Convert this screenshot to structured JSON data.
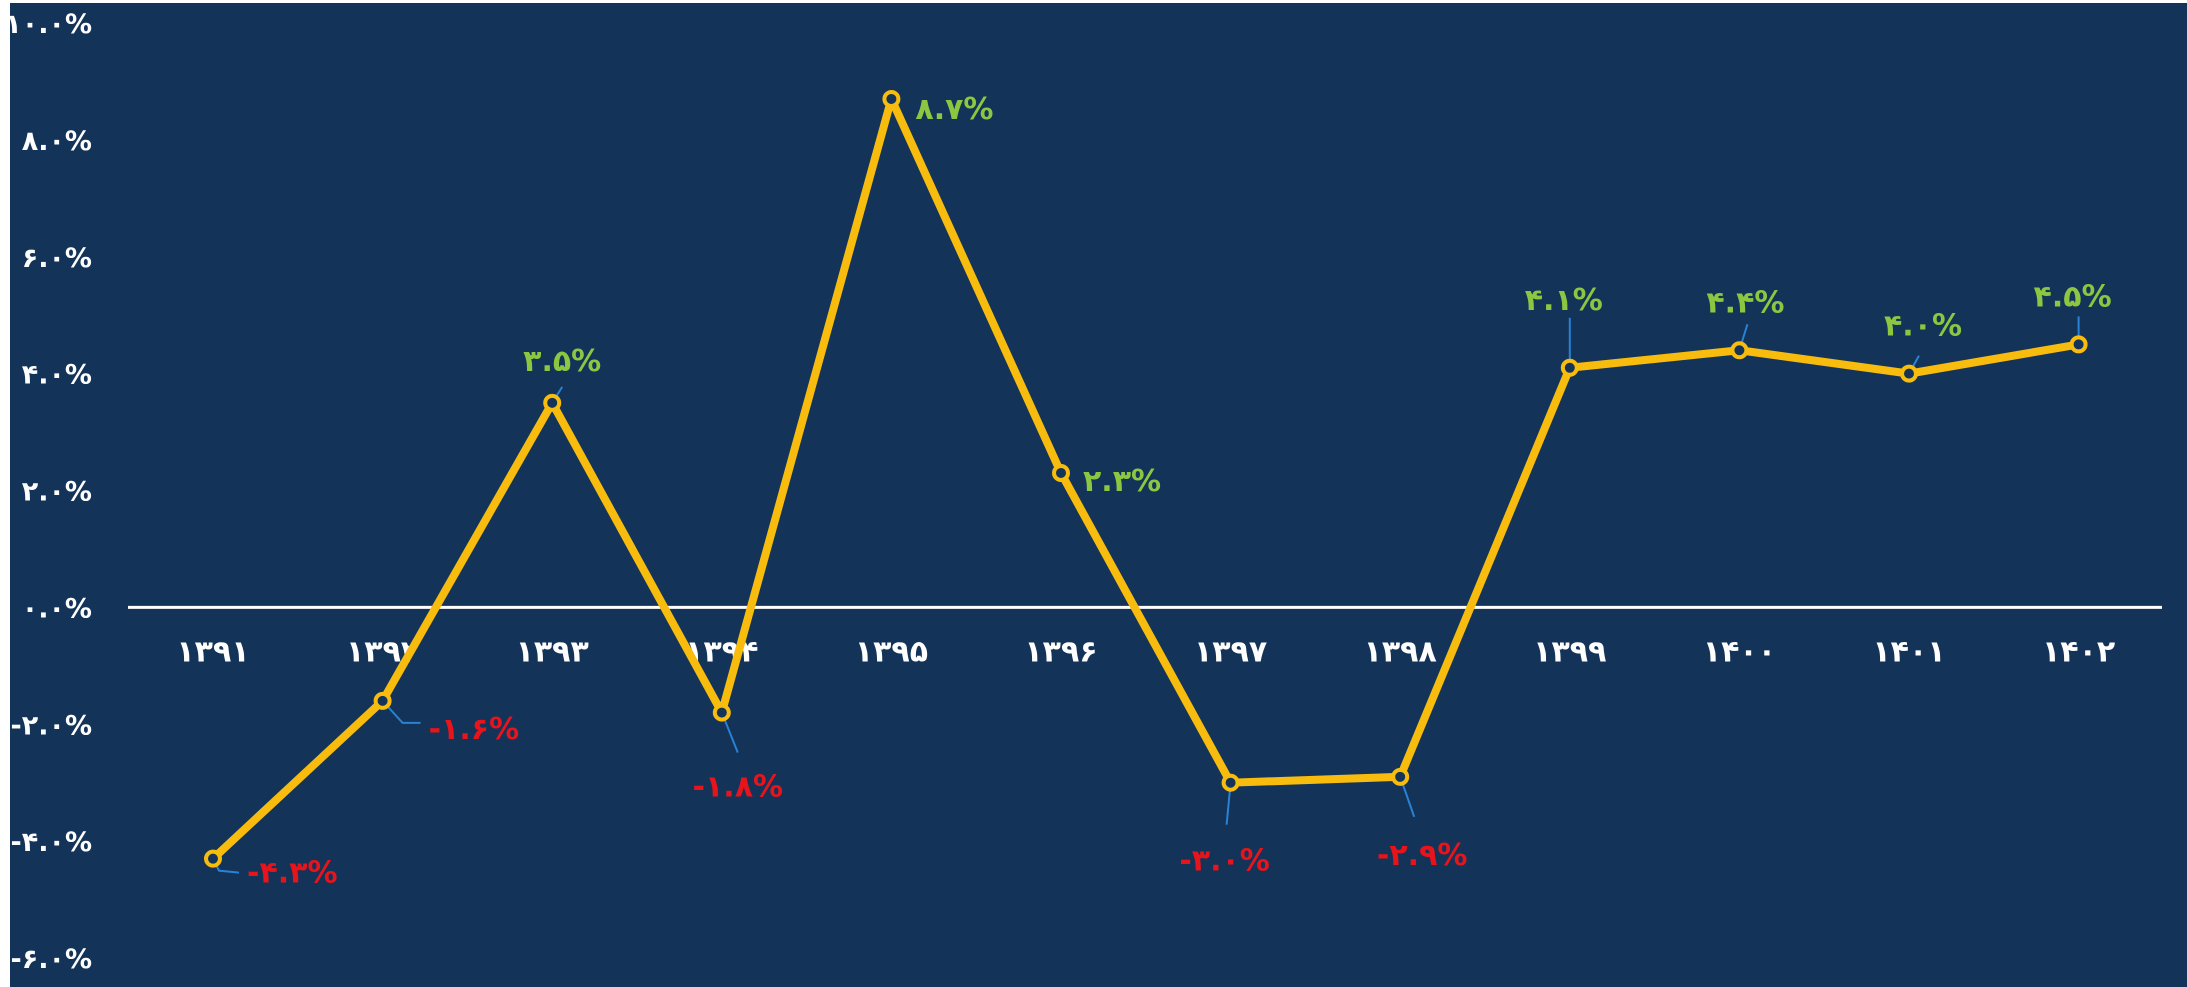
{
  "chart_data": {
    "type": "line",
    "title": "",
    "xlabel": "",
    "ylabel": "",
    "categories": [
      "۱۳۹۱",
      "۱۳۹۲",
      "۱۳۹۳",
      "۱۳۹۴",
      "۱۳۹۵",
      "۱۳۹۶",
      "۱۳۹۷",
      "۱۳۹۸",
      "۱۳۹۹",
      "۱۴۰۰",
      "۱۴۰۱",
      "۱۴۰۲"
    ],
    "series": [
      {
        "values": [
          -4.3,
          -1.6,
          3.5,
          -1.8,
          8.7,
          2.3,
          -3.0,
          -2.9,
          4.1,
          4.4,
          4.0,
          4.5
        ],
        "labels": [
          "-۴.۳%",
          "-۱.۶%",
          "۳.۵%",
          "-۱.۸%",
          "۸.۷%",
          "۲.۳%",
          "-۳.۰%",
          "-۲.۹%",
          "۴.۱%",
          "۴.۴%",
          "۴.۰%",
          "۴.۵%"
        ],
        "color": "#f7bc0d"
      }
    ],
    "ylim": [
      -6,
      10
    ],
    "yticks": [
      10,
      8,
      6,
      4,
      2,
      0,
      -2,
      -4,
      -6
    ],
    "ytick_labels": [
      "۱۰.۰%",
      "۸.۰%",
      "۶.۰%",
      "۴.۰%",
      "۲.۰%",
      "۰.۰%",
      "-۲.۰%",
      "-۴.۰%",
      "-۶.۰%"
    ],
    "grid": false,
    "legend": "none",
    "colors": {
      "background": "#133359",
      "line": "#f7bc0d",
      "positive_label": "#8dc641",
      "negative_label": "#e8141b",
      "axis": "#ffffff",
      "leader": "#2a82d4"
    }
  }
}
